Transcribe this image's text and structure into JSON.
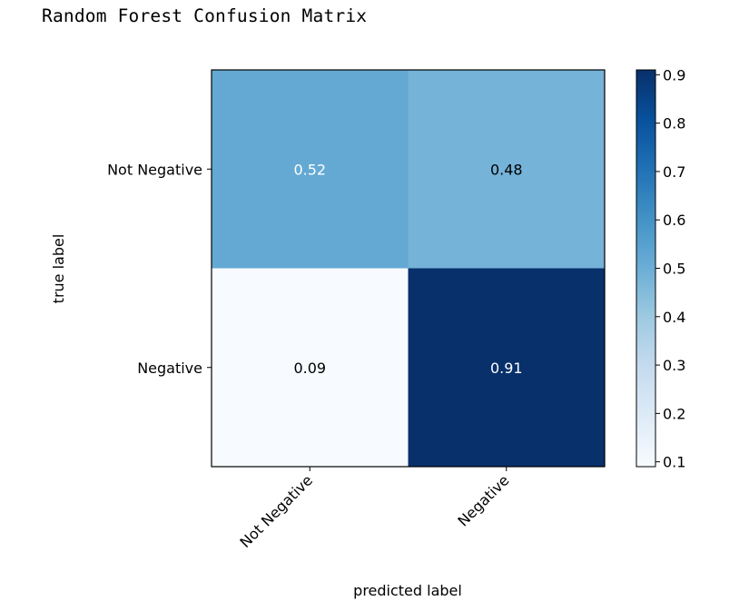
{
  "output_header": "Random Forest Confusion Matrix",
  "chart_data": {
    "type": "heatmap",
    "title": "",
    "xlabel": "predicted label",
    "ylabel": "true label",
    "x_categories": [
      "Not Negative",
      "Negative"
    ],
    "y_categories": [
      "Not Negative",
      "Negative"
    ],
    "values": [
      [
        0.52,
        0.48
      ],
      [
        0.09,
        0.91
      ]
    ],
    "value_labels": [
      [
        "0.52",
        "0.48"
      ],
      [
        "0.09",
        "0.91"
      ]
    ],
    "colormap": "Blues",
    "colorbar": {
      "range": [
        0.09,
        0.91
      ],
      "ticks": [
        0.1,
        0.2,
        0.3,
        0.4,
        0.5,
        0.6,
        0.7,
        0.8,
        0.9
      ],
      "tick_labels": [
        "0.1",
        "0.2",
        "0.3",
        "0.4",
        "0.5",
        "0.6",
        "0.7",
        "0.8",
        "0.9"
      ]
    },
    "grid": false,
    "text_colors": {
      "light": "#ffffff",
      "dark": "#000000"
    }
  }
}
